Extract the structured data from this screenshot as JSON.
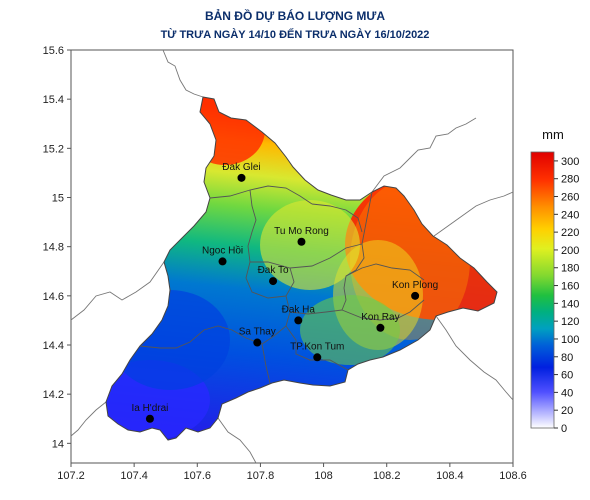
{
  "title": {
    "line1": "BẢN ĐỒ DỰ BÁO LƯỢNG MƯA",
    "line2": "TỪ TRƯA NGÀY 14/10 ĐẾN TRƯA NGÀY 16/10/2022"
  },
  "axes": {
    "x_ticks": [
      "107.2",
      "107.4",
      "107.6",
      "107.8",
      "108",
      "108.2",
      "108.4",
      "108.6"
    ],
    "y_ticks": [
      "15.6",
      "15.4",
      "15.2",
      "15",
      "14.8",
      "14.6",
      "14.4",
      "14.2",
      "14"
    ],
    "lon_range": [
      107.2,
      108.6
    ],
    "lat_range": [
      13.92,
      15.6
    ]
  },
  "legend": {
    "unit": "mm",
    "min": 0,
    "max": 310,
    "ticks": [
      "300",
      "280",
      "260",
      "240",
      "220",
      "200",
      "180",
      "160",
      "140",
      "120",
      "100",
      "80",
      "60",
      "40",
      "20",
      "0"
    ],
    "colors": [
      "#ffffff",
      "#3a3aff",
      "#0030d0",
      "#0077d8",
      "#00a0a0",
      "#00c050",
      "#30d030",
      "#b0e030",
      "#f0f020",
      "#ffc000",
      "#ff7000",
      "#ff2000",
      "#e00000"
    ]
  },
  "cities": [
    {
      "name": "Đak Glei",
      "lon": 107.74,
      "lat": 15.08
    },
    {
      "name": "Tu Mo Rong",
      "lon": 107.93,
      "lat": 14.82
    },
    {
      "name": "Ngoc Hồi",
      "lon": 107.68,
      "lat": 14.74
    },
    {
      "name": "Đak To",
      "lon": 107.84,
      "lat": 14.66
    },
    {
      "name": "Kon Plong",
      "lon": 108.29,
      "lat": 14.6
    },
    {
      "name": "Đak Ha",
      "lon": 107.92,
      "lat": 14.5
    },
    {
      "name": "Kon Ray",
      "lon": 108.18,
      "lat": 14.47
    },
    {
      "name": "Sa Thay",
      "lon": 107.79,
      "lat": 14.41
    },
    {
      "name": "TP.Kon Tum",
      "lon": 107.98,
      "lat": 14.35
    },
    {
      "name": "Ia H'drai",
      "lon": 107.45,
      "lat": 14.1
    }
  ],
  "rainfall_zones": [
    {
      "level": "very-high",
      "color": "#ff1a00"
    },
    {
      "level": "high",
      "color": "#ffa000"
    },
    {
      "level": "moderate",
      "color": "#b8e030"
    },
    {
      "level": "mid",
      "color": "#10c080"
    },
    {
      "level": "low",
      "color": "#0088d0"
    },
    {
      "level": "very-low",
      "color": "#1030e0"
    }
  ]
}
